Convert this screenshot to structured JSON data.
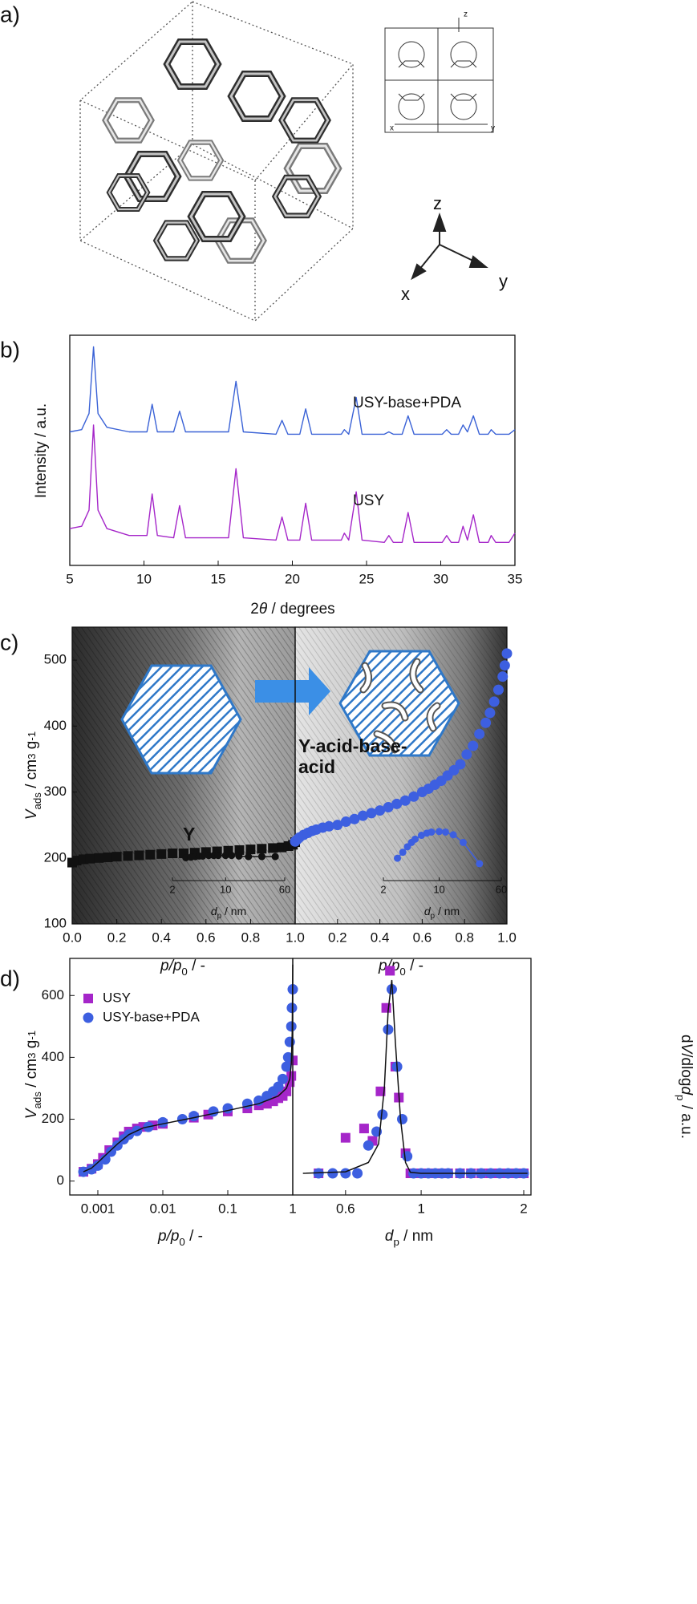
{
  "panel_labels": [
    "a)",
    "b)",
    "c)",
    "d)"
  ],
  "structure": {
    "framework_axes": [
      "z",
      "x",
      "y"
    ],
    "axes": [
      "z",
      "x",
      "y"
    ]
  },
  "chart_data": [
    {
      "type": "line",
      "xlabel": [
        {
          "text": "2"
        },
        {
          "text": "θ",
          "style": "italic"
        },
        {
          "text": " / degrees"
        }
      ],
      "ylabel": [
        {
          "text": "Intensity / a.u."
        }
      ],
      "xlim": [
        5,
        35
      ],
      "xticks": [
        5,
        10,
        15,
        20,
        25,
        30,
        35
      ],
      "ylim": [
        0,
        100
      ],
      "x": [
        5,
        5.8,
        6.3,
        6.6,
        6.9,
        7.5,
        9,
        10.2,
        10.55,
        10.9,
        12,
        12.4,
        12.8,
        15.7,
        16.2,
        16.7,
        18.9,
        19.3,
        19.7,
        20.5,
        20.9,
        21.3,
        23.3,
        23.5,
        23.8,
        24.3,
        24.7,
        26.2,
        26.5,
        26.8,
        27.4,
        27.8,
        28.2,
        30.1,
        30.4,
        30.7,
        31.2,
        31.5,
        31.8,
        32.2,
        32.6,
        33.2,
        33.4,
        33.7,
        34.6,
        35
      ],
      "series": [
        {
          "name": "USY-base+PDA",
          "color": "#3a62d6",
          "values": [
            58,
            59,
            66,
            95,
            66,
            60,
            58,
            58,
            70,
            58,
            58,
            67,
            58,
            58,
            80,
            58,
            57,
            63,
            57,
            57,
            68,
            57,
            57,
            59,
            57,
            73,
            57,
            57,
            58,
            57,
            57,
            65,
            57,
            57,
            59,
            57,
            57,
            61,
            58,
            65,
            57,
            57,
            59,
            57,
            57,
            59
          ]
        },
        {
          "name": "USY",
          "color": "#a526c9",
          "values": [
            16,
            17,
            24,
            61,
            24,
            16,
            13,
            13,
            31,
            13,
            12,
            26,
            12,
            12,
            42,
            12,
            11,
            21,
            11,
            11,
            27,
            11,
            11,
            14,
            11,
            32,
            11,
            10,
            13,
            10,
            10,
            23,
            10,
            10,
            13,
            10,
            10,
            17,
            11,
            22,
            10,
            10,
            13,
            10,
            10,
            14
          ]
        }
      ]
    },
    {
      "type": "scatter",
      "xlabel": [
        {
          "text": "p/p",
          "style": "italic"
        },
        {
          "text": "0",
          "style": "sub"
        },
        {
          "text": " / -"
        }
      ],
      "ylabel": [
        {
          "text": "V",
          "style": "italic"
        },
        {
          "text": "ads",
          "style": "sub"
        },
        {
          "text": " / cm"
        },
        {
          "text": "3",
          "style": "sup"
        },
        {
          "text": " g"
        },
        {
          "text": "-1",
          "style": "sup"
        }
      ],
      "xlim": [
        0,
        1
      ],
      "xticks": [
        {
          "value": 0,
          "label": "0.0"
        },
        0.2,
        0.4,
        0.6,
        0.8,
        {
          "value": 1,
          "label": "1.0"
        }
      ],
      "ylim": [
        100,
        550
      ],
      "yticks": [
        100,
        200,
        300,
        400,
        500
      ],
      "series": [
        {
          "name": "Y",
          "color": "#111111",
          "marker": "square",
          "x": [
            0,
            0.02,
            0.05,
            0.08,
            0.12,
            0.16,
            0.2,
            0.25,
            0.3,
            0.35,
            0.4,
            0.45,
            0.5,
            0.55,
            0.6,
            0.65,
            0.7,
            0.75,
            0.8,
            0.85,
            0.9,
            0.94,
            0.97,
            0.99,
            1
          ],
          "values": [
            193,
            196,
            198,
            199,
            200,
            201,
            202,
            203,
            204,
            205,
            206,
            207,
            207,
            208,
            209,
            210,
            211,
            212,
            213,
            214,
            215,
            216,
            218,
            220,
            224
          ]
        }
      ]
    },
    {
      "type": "scatter",
      "xlabel": [
        {
          "text": "p/p",
          "style": "italic"
        },
        {
          "text": "0",
          "style": "sub"
        },
        {
          "text": " / -"
        }
      ],
      "xlim": [
        0,
        1
      ],
      "xticks": [
        0.2,
        0.4,
        0.6,
        0.8,
        {
          "value": 1,
          "label": "1.0"
        }
      ],
      "ylim": [
        100,
        550
      ],
      "series": [
        {
          "name": "Y-acid-base-acid",
          "color": "#3d5fe0",
          "marker": "circle",
          "x": [
            0,
            0.01,
            0.02,
            0.04,
            0.06,
            0.08,
            0.1,
            0.13,
            0.16,
            0.2,
            0.24,
            0.28,
            0.32,
            0.36,
            0.4,
            0.44,
            0.48,
            0.52,
            0.56,
            0.6,
            0.63,
            0.66,
            0.69,
            0.72,
            0.75,
            0.78,
            0.81,
            0.84,
            0.87,
            0.9,
            0.92,
            0.94,
            0.96,
            0.98,
            0.99,
            1
          ],
          "values": [
            225,
            228,
            231,
            235,
            238,
            241,
            243,
            246,
            248,
            250,
            255,
            259,
            264,
            268,
            272,
            277,
            282,
            287,
            293,
            300,
            305,
            311,
            317,
            325,
            333,
            342,
            357,
            370,
            388,
            405,
            420,
            437,
            455,
            475,
            492,
            510
          ]
        }
      ]
    },
    {
      "type": "scatter",
      "xscale": "log",
      "xlabel": [
        {
          "text": "d",
          "style": "italic"
        },
        {
          "text": "p",
          "style": "sub"
        },
        {
          "text": " / nm"
        }
      ],
      "xlim": [
        2,
        60
      ],
      "xticks": [
        2,
        10,
        60
      ],
      "ylim": [
        0,
        100
      ],
      "series": [
        {
          "color": "#111111",
          "marker": "circle",
          "line": true,
          "x": [
            3,
            3.5,
            4,
            4.5,
            5,
            6,
            7,
            8,
            10,
            12,
            15,
            20,
            30,
            45
          ],
          "values": [
            42,
            43,
            44,
            45,
            45,
            46,
            46,
            46,
            46,
            46,
            45,
            44,
            44,
            44
          ]
        }
      ]
    },
    {
      "type": "scatter",
      "xscale": "log",
      "xlabel": [
        {
          "text": "d",
          "style": "italic"
        },
        {
          "text": "p",
          "style": "sub"
        },
        {
          "text": " / nm"
        }
      ],
      "xlim": [
        2,
        60
      ],
      "xticks": [
        2,
        10,
        60
      ],
      "ylim": [
        0,
        100
      ],
      "series": [
        {
          "color": "#3d5fe0",
          "marker": "circle",
          "line": true,
          "x": [
            3,
            3.5,
            4,
            4.5,
            5,
            6,
            7,
            8,
            10,
            12,
            15,
            20,
            32
          ],
          "values": [
            41,
            52,
            62,
            70,
            76,
            83,
            87,
            89,
            90,
            89,
            84,
            70,
            31
          ]
        }
      ]
    },
    {
      "type": "scatter",
      "xscale": "log",
      "legend": "upper left",
      "xlabel": [
        {
          "text": "p/p",
          "style": "italic"
        },
        {
          "text": "0",
          "style": "sub"
        },
        {
          "text": " / -"
        }
      ],
      "ylabel": [
        {
          "text": "V",
          "style": "italic"
        },
        {
          "text": "ads",
          "style": "sub"
        },
        {
          "text": " / cm"
        },
        {
          "text": "3",
          "style": "sup"
        },
        {
          "text": " g"
        },
        {
          "text": "-1",
          "style": "sup"
        }
      ],
      "xlim": [
        0.00037,
        1
      ],
      "xticks": [
        0.001,
        0.01,
        0.1,
        1
      ],
      "ylim": [
        -45,
        720
      ],
      "yticks": [
        0,
        200,
        400,
        600
      ],
      "series": [
        {
          "name": "USY",
          "color": "#a526c9",
          "marker": "square",
          "x": [
            0.0006,
            0.0008,
            0.001,
            0.0012,
            0.0015,
            0.002,
            0.0025,
            0.003,
            0.004,
            0.005,
            0.007,
            0.01,
            0.03,
            0.05,
            0.1,
            0.2,
            0.3,
            0.4,
            0.5,
            0.6,
            0.7,
            0.8,
            0.9,
            0.95,
            1
          ],
          "values": [
            30,
            40,
            55,
            75,
            100,
            125,
            145,
            160,
            170,
            175,
            180,
            185,
            205,
            215,
            225,
            235,
            245,
            250,
            258,
            268,
            275,
            290,
            320,
            340,
            390
          ]
        },
        {
          "name": "USY-base+PDA",
          "color": "#3d5fe0",
          "marker": "circle",
          "x": [
            0.0006,
            0.0008,
            0.001,
            0.0013,
            0.0016,
            0.002,
            0.0025,
            0.003,
            0.004,
            0.006,
            0.01,
            0.02,
            0.03,
            0.06,
            0.1,
            0.2,
            0.3,
            0.4,
            0.5,
            0.6,
            0.7,
            0.8,
            0.85,
            0.9,
            0.95,
            0.97,
            1
          ],
          "values": [
            30,
            38,
            50,
            70,
            95,
            115,
            135,
            150,
            162,
            175,
            190,
            200,
            210,
            225,
            235,
            250,
            260,
            275,
            290,
            305,
            330,
            370,
            400,
            450,
            500,
            560,
            620
          ]
        },
        {
          "color": "#111111",
          "marker": "none",
          "x": [
            0.0006,
            0.0008,
            0.001,
            0.0015,
            0.002,
            0.003,
            0.005,
            0.01,
            0.03,
            0.1,
            0.3,
            0.6,
            0.8,
            0.9,
            0.95,
            0.98,
            1
          ],
          "values": [
            30,
            42,
            60,
            95,
            120,
            150,
            172,
            185,
            205,
            228,
            250,
            275,
            300,
            330,
            380,
            480,
            700
          ]
        }
      ]
    },
    {
      "type": "scatter",
      "xscale": "log",
      "xlabel": [
        {
          "text": "d",
          "style": "italic"
        },
        {
          "text": "p",
          "style": "sub"
        },
        {
          "text": " / nm"
        }
      ],
      "ylabel": [
        {
          "text": "d"
        },
        {
          "text": "V",
          "style": "italic"
        },
        {
          "text": "/dlog"
        },
        {
          "text": "d",
          "style": "italic"
        },
        {
          "text": "p",
          "style": "sub"
        },
        {
          "text": " / a.u."
        }
      ],
      "xlim": [
        0.42,
        2.1
      ],
      "xticks": [
        0.6,
        1,
        2
      ],
      "ylim": [
        -45,
        720
      ],
      "series": [
        {
          "color": "#a526c9",
          "marker": "square",
          "x": [
            0.5,
            0.6,
            0.68,
            0.72,
            0.76,
            0.79,
            0.81,
            0.84,
            0.86,
            0.9,
            0.93,
            0.97,
            1,
            1.1,
            1.2,
            1.3,
            1.4,
            1.5,
            1.6,
            1.7,
            1.8,
            1.9,
            2
          ],
          "values": [
            25,
            140,
            170,
            130,
            290,
            560,
            680,
            370,
            270,
            90,
            25,
            25,
            25,
            25,
            25,
            25,
            25,
            25,
            25,
            25,
            25,
            25,
            25
          ]
        },
        {
          "color": "#3d5fe0",
          "marker": "circle",
          "x": [
            0.5,
            0.55,
            0.6,
            0.65,
            0.7,
            0.74,
            0.77,
            0.8,
            0.82,
            0.85,
            0.88,
            0.91,
            0.95,
            1,
            1.05,
            1.1,
            1.15,
            1.2,
            1.3,
            1.4,
            1.5,
            1.6,
            1.7,
            1.8,
            1.9,
            2
          ],
          "values": [
            25,
            25,
            25,
            25,
            115,
            160,
            215,
            490,
            620,
            370,
            200,
            80,
            25,
            25,
            25,
            25,
            25,
            25,
            25,
            25,
            25,
            25,
            25,
            25,
            25,
            25
          ]
        },
        {
          "color": "#111111",
          "marker": "none",
          "x": [
            0.45,
            0.6,
            0.7,
            0.75,
            0.78,
            0.8,
            0.82,
            0.84,
            0.87,
            0.9,
            0.93,
            1,
            2.05
          ],
          "values": [
            25,
            30,
            60,
            120,
            300,
            550,
            650,
            450,
            200,
            60,
            28,
            25,
            25
          ]
        }
      ]
    }
  ]
}
